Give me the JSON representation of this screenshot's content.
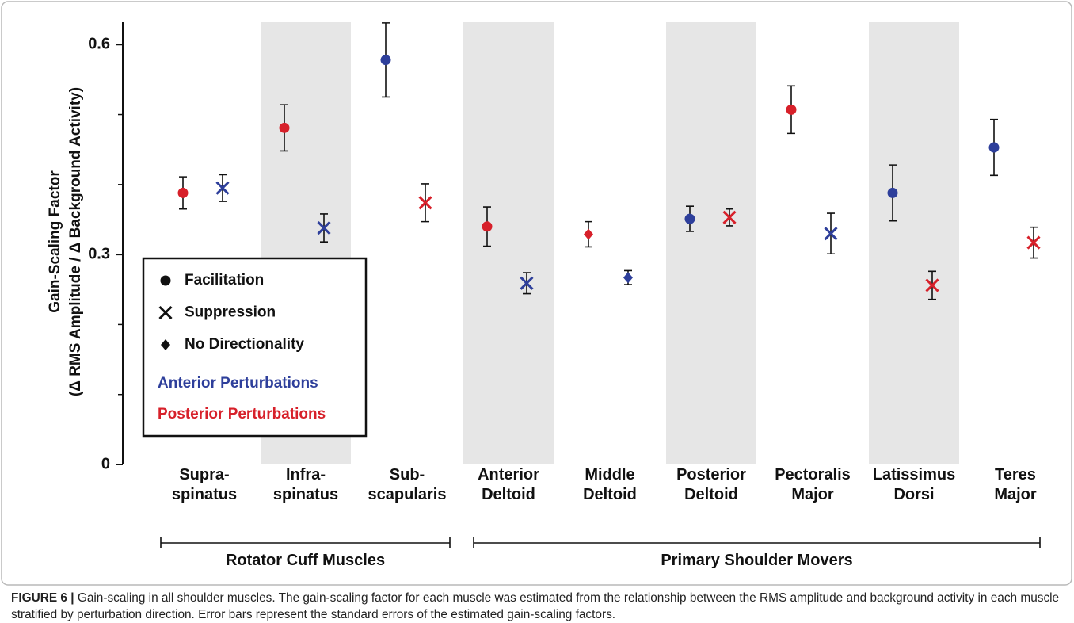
{
  "chart_data": {
    "type": "dot-errorbar",
    "ylabel": [
      "Gain-Scaling Factor",
      "(Δ RMS Amplitude / Δ Background Activity)"
    ],
    "categories": [
      "Supra-\nspinatus",
      "Infra-\nspinatus",
      "Sub-\nscapularis",
      "Anterior\nDeltoid",
      "Middle\nDeltoid",
      "Posterior\nDeltoid",
      "Pectoralis\nMajor",
      "Latissimus\nDorsi",
      "Teres\nMajor"
    ],
    "groups": [
      {
        "label": "Rotator Cuff Muscles",
        "count": 3
      },
      {
        "label": "Primary Shoulder Movers",
        "count": 6
      }
    ],
    "series": [
      {
        "name": "Anterior Perturbations",
        "color": "#2e3f9b",
        "values": [
          0.395,
          0.338,
          0.578,
          0.259,
          0.267,
          0.351,
          0.33,
          0.388,
          0.453
        ],
        "errors": [
          0.019,
          0.02,
          0.053,
          0.015,
          0.01,
          0.018,
          0.029,
          0.04,
          0.04
        ],
        "markers": [
          "x",
          "x",
          "circle",
          "x",
          "diamond",
          "circle",
          "x",
          "circle",
          "circle"
        ]
      },
      {
        "name": "Posterior Perturbations",
        "color": "#d7202a",
        "values": [
          0.388,
          0.481,
          0.374,
          0.34,
          0.329,
          0.353,
          0.507,
          0.256,
          0.317
        ],
        "errors": [
          0.023,
          0.033,
          0.027,
          0.028,
          0.018,
          0.012,
          0.034,
          0.02,
          0.022
        ],
        "markers": [
          "circle",
          "circle",
          "x",
          "circle",
          "diamond",
          "x",
          "circle",
          "x",
          "x"
        ]
      }
    ],
    "marker_legend": [
      {
        "marker": "circle",
        "label": "Facilitation"
      },
      {
        "marker": "x",
        "label": "Suppression"
      },
      {
        "marker": "diamond",
        "label": "No Directionality"
      }
    ],
    "ylim": [
      0,
      0.632
    ],
    "yticks": [
      0,
      0.3,
      0.6
    ],
    "yminorticks": [
      0.1,
      0.2,
      0.4,
      0.5
    ],
    "band_color": "#e6e6e6",
    "legend": "lower-left"
  },
  "caption": {
    "label": "FIGURE 6 |",
    "text": "Gain-scaling in all shoulder muscles. The gain-scaling factor for each muscle was estimated from the relationship between the RMS amplitude and background activity in each muscle stratified by perturbation direction. Error bars represent the standard errors of the estimated gain-scaling factors."
  }
}
